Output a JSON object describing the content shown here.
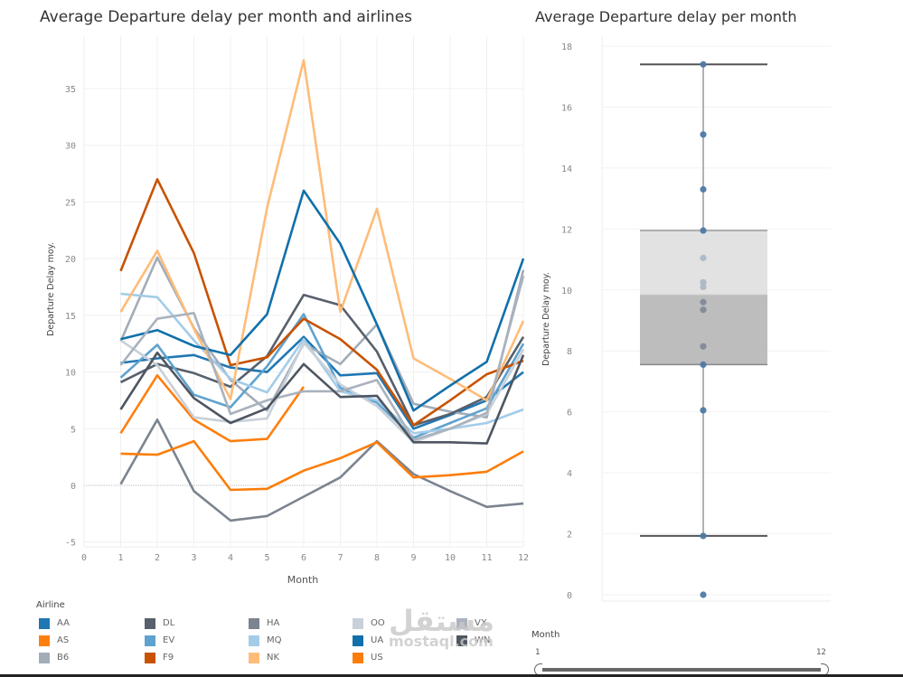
{
  "chart_data": [
    {
      "type": "line",
      "title": "Average Departure delay per month and airlines",
      "xlabel": "Month",
      "ylabel": "Departure Delay moy.",
      "xlim": [
        0,
        12
      ],
      "ylim": [
        -6,
        39
      ],
      "x_ticks": [
        0,
        1,
        2,
        3,
        4,
        5,
        6,
        7,
        8,
        9,
        10,
        11,
        12
      ],
      "y_ticks": [
        -5,
        0,
        5,
        10,
        15,
        20,
        25,
        30,
        35
      ],
      "grid": true,
      "x": [
        1,
        2,
        3,
        4,
        5,
        6,
        7,
        8,
        9,
        10,
        11,
        12
      ],
      "series": [
        {
          "name": "AA",
          "color": "#1f77b4",
          "values": [
            10.8,
            11.2,
            11.5,
            10.4,
            10.0,
            13.1,
            9.7,
            9.9,
            5.0,
            6.2,
            7.5,
            10.0
          ]
        },
        {
          "name": "AS",
          "color": "#ff7f0e",
          "values": [
            4.6,
            9.7,
            5.8,
            3.9,
            4.1,
            8.7,
            null,
            null,
            null,
            null,
            null,
            null
          ]
        },
        {
          "name": "B6",
          "color": "#a3acb9",
          "values": [
            12.7,
            20.1,
            13.9,
            9.3,
            6.6,
            12.5,
            10.7,
            14.2,
            7.2,
            6.5,
            6.0,
            19.0
          ]
        },
        {
          "name": "DL",
          "color": "#57606c",
          "values": [
            9.1,
            10.7,
            9.9,
            8.7,
            11.4,
            16.8,
            15.9,
            11.8,
            5.3,
            6.3,
            7.8,
            13.1
          ]
        },
        {
          "name": "EV",
          "color": "#5fa2ce",
          "values": [
            9.5,
            12.4,
            8.0,
            6.9,
            10.5,
            15.1,
            8.6,
            7.3,
            4.2,
            5.5,
            6.8,
            12.5
          ]
        },
        {
          "name": "F9",
          "color": "#c85200",
          "values": [
            18.9,
            27.0,
            20.5,
            10.6,
            11.3,
            14.7,
            12.9,
            10.2,
            5.3,
            7.5,
            9.8,
            11.0
          ]
        },
        {
          "name": "HA",
          "color": "#7b848f",
          "values": [
            0.1,
            5.8,
            -0.5,
            -3.1,
            -2.7,
            -1.0,
            0.7,
            3.9,
            1.0,
            -0.5,
            -1.9,
            -1.6
          ]
        },
        {
          "name": "MQ",
          "color": "#a3cce9",
          "values": [
            16.9,
            16.6,
            12.8,
            9.4,
            8.2,
            12.9,
            8.3,
            7.5,
            4.6,
            5.0,
            5.5,
            6.7
          ]
        },
        {
          "name": "NK",
          "color": "#ffbc79",
          "values": [
            15.3,
            20.7,
            13.8,
            7.6,
            24.5,
            37.5,
            15.3,
            24.4,
            11.2,
            9.4,
            7.5,
            14.5
          ]
        },
        {
          "name": "OO",
          "color": "#c8d0d9",
          "values": [
            12.8,
            10.6,
            6.0,
            5.6,
            5.9,
            12.6,
            8.9,
            7.0,
            3.8,
            5.0,
            6.3,
            12.0
          ]
        },
        {
          "name": "UA",
          "color": "#1170aa",
          "values": [
            12.9,
            13.7,
            12.3,
            11.5,
            15.1,
            26.0,
            21.3,
            14.2,
            6.6,
            8.8,
            10.9,
            20.0
          ]
        },
        {
          "name": "US",
          "color": "#fc7d0b",
          "values": [
            2.8,
            2.7,
            3.9,
            -0.4,
            -0.3,
            1.3,
            2.4,
            3.8,
            0.7,
            0.9,
            1.2,
            3.0
          ]
        },
        {
          "name": "VX",
          "color": "#a9b2bd",
          "values": [
            10.6,
            14.7,
            15.2,
            6.3,
            7.5,
            8.3,
            8.3,
            9.3,
            4.0,
            5.0,
            6.4,
            18.5
          ]
        },
        {
          "name": "WN",
          "color": "#4e5661",
          "values": [
            6.7,
            11.7,
            7.7,
            5.5,
            6.8,
            10.7,
            7.8,
            7.9,
            3.8,
            3.8,
            3.7,
            11.5
          ]
        }
      ],
      "legend_title": "Airline",
      "legend_position": "bottom"
    },
    {
      "type": "box",
      "title": "Average Departure delay per month",
      "ylabel": "Departure Delay moy.",
      "ylim": [
        -0.2,
        18.3
      ],
      "y_ticks": [
        0,
        2,
        4,
        6,
        8,
        10,
        12,
        14,
        16,
        18
      ],
      "grid": true,
      "points": [
        17.4,
        15.1,
        13.3,
        11.95,
        11.05,
        10.25,
        10.1,
        9.6,
        9.35,
        8.15,
        7.55,
        6.05,
        1.93,
        0.0
      ],
      "whisker_low": 1.93,
      "q1": 7.55,
      "median": 9.85,
      "q3": 11.95,
      "whisker_high": 17.4
    }
  ],
  "legend": {
    "title": "Airline",
    "items": [
      {
        "label": "AA",
        "color": "#1f77b4"
      },
      {
        "label": "DL",
        "color": "#57606c"
      },
      {
        "label": "HA",
        "color": "#7b848f"
      },
      {
        "label": "OO",
        "color": "#c8d0d9"
      },
      {
        "label": "VX",
        "color": "#a9b2bd"
      },
      {
        "label": "AS",
        "color": "#ff7f0e"
      },
      {
        "label": "EV",
        "color": "#5fa2ce"
      },
      {
        "label": "MQ",
        "color": "#a3cce9"
      },
      {
        "label": "UA",
        "color": "#1170aa"
      },
      {
        "label": "WN",
        "color": "#4e5661"
      },
      {
        "label": "B6",
        "color": "#a3acb9"
      },
      {
        "label": "F9",
        "color": "#c85200"
      },
      {
        "label": "NK",
        "color": "#ffbc79"
      },
      {
        "label": "US",
        "color": "#fc7d0b"
      }
    ]
  },
  "filter": {
    "title": "Month",
    "min_label": "1",
    "max_label": "12",
    "range": [
      1,
      12
    ]
  },
  "watermark": {
    "arabic": "مستقل",
    "latin": "mostaql.com"
  }
}
